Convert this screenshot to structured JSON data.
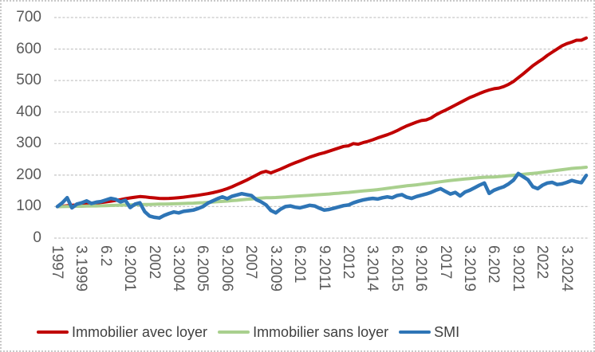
{
  "figure": {
    "background": "#ffffff",
    "border_color": "#c9c9c9",
    "gridline_color": "#c6c6c6",
    "axis_label_color": "#595959",
    "legend_text_color": "#404040"
  },
  "chart_data": {
    "type": "line",
    "title": "",
    "xlabel": "",
    "ylabel": "",
    "grid": "horizontal-dashed",
    "legend_position": "bottom",
    "y_axis": {
      "min": 0,
      "max": 700,
      "step": 100,
      "tick_labels": [
        "0",
        "100",
        "200",
        "300",
        "400",
        "500",
        "600",
        "700"
      ]
    },
    "x_axis": {
      "note": "quarterly categories Dec-1997 to Mar-2025, one label every 5 quarters, labels rotated 90deg and truncated as shown",
      "tick_every": 5,
      "tick_labels": [
        "1997",
        "3.1999",
        "6.2",
        "9.2001",
        "2002",
        "3.2004",
        "6.2005",
        "9.2006",
        "2007",
        "3.2009",
        "6.201",
        "9.2011",
        "2012",
        "3.2014",
        "6.2015",
        "9.2016",
        "2017",
        "3.2019",
        "6.202",
        "9.2021",
        "2022",
        "3.2024"
      ]
    },
    "series": [
      {
        "name": "Immobilier avec loyer",
        "color": "#C00000",
        "stroke_width": 4,
        "values": [
          100,
          101,
          102.5,
          104,
          105,
          106.5,
          108,
          110,
          111.5,
          113,
          115,
          117,
          119.5,
          122,
          125,
          127.5,
          130,
          132,
          131,
          129,
          127.5,
          126,
          125.5,
          126,
          127,
          128.5,
          130,
          132,
          134,
          136,
          138.5,
          141,
          144,
          147.5,
          152,
          157,
          163,
          170,
          177,
          184,
          192,
          200,
          208,
          212,
          207,
          213,
          219,
          226,
          233,
          239,
          245,
          251,
          257,
          262,
          267,
          271,
          276,
          281,
          286,
          291,
          293,
          300,
          298,
          303,
          307,
          312,
          318,
          323,
          328,
          334,
          341,
          349,
          356,
          362,
          368,
          373,
          375,
          381,
          391,
          399,
          406,
          414,
          422,
          430,
          438,
          446,
          452,
          459,
          465,
          470,
          474,
          476,
          481,
          488,
          497,
          509,
          521,
          534,
          547,
          558,
          568,
          580,
          590,
          600,
          610,
          617,
          622,
          628,
          628,
          635
        ]
      },
      {
        "name": "Immobilier sans loyer",
        "color": "#A9D08E",
        "stroke_width": 4,
        "values": [
          100,
          100,
          100.5,
          100.5,
          101,
          101,
          101.5,
          102,
          102,
          102.5,
          103,
          103.5,
          104,
          104.5,
          105,
          105.5,
          106,
          106.5,
          107,
          107,
          107.5,
          108,
          108,
          108.5,
          109,
          109.5,
          110,
          110.5,
          111,
          112,
          112.5,
          113.5,
          114.5,
          115.5,
          116.5,
          117.5,
          119,
          120,
          121.5,
          123,
          124,
          125.5,
          127,
          128,
          128.5,
          129,
          130,
          131,
          132,
          133,
          134,
          135,
          136,
          137,
          138,
          139,
          140,
          141.5,
          142.5,
          144,
          145,
          146.5,
          148,
          149.5,
          151,
          152.5,
          154,
          156,
          158,
          160,
          162,
          164,
          166,
          167.5,
          169,
          171,
          173,
          175,
          177,
          179,
          181,
          183,
          184.5,
          186,
          187.5,
          189,
          190.5,
          192,
          193,
          193.5,
          194,
          195,
          196.5,
          198,
          199.5,
          201,
          202.5,
          204,
          205.5,
          207,
          209,
          211,
          213,
          215,
          217,
          219,
          221,
          222.5,
          223.5,
          225
        ]
      },
      {
        "name": "SMI",
        "color": "#2E75B6",
        "stroke_width": 4.5,
        "values": [
          100,
          112,
          128,
          96,
          108,
          112,
          118,
          110,
          114,
          116,
          121,
          126,
          123,
          115,
          120,
          97,
          108,
          112,
          84,
          70,
          66,
          64,
          72,
          78,
          83,
          80,
          85,
          87,
          89,
          94,
          100,
          111,
          118,
          125,
          131,
          125,
          133,
          137,
          141,
          138,
          135,
          122,
          115,
          105,
          88,
          80,
          92,
          100,
          102,
          98,
          96,
          100,
          104,
          102,
          95,
          89,
          91,
          95,
          99,
          103,
          105,
          112,
          117,
          121,
          124,
          126,
          124,
          128,
          131,
          128,
          135,
          138,
          130,
          126,
          132,
          136,
          140,
          145,
          152,
          157,
          148,
          140,
          145,
          134,
          146,
          152,
          160,
          168,
          175,
          142,
          152,
          158,
          163,
          172,
          184,
          205,
          195,
          185,
          163,
          157,
          168,
          175,
          177,
          170,
          172,
          177,
          183,
          179,
          176,
          199
        ]
      }
    ]
  },
  "legend": {
    "items": [
      {
        "label": "Immobilier avec loyer",
        "color": "#C00000"
      },
      {
        "label": "Immobilier sans loyer",
        "color": "#A9D08E"
      },
      {
        "label": "SMI",
        "color": "#2E75B6"
      }
    ]
  }
}
